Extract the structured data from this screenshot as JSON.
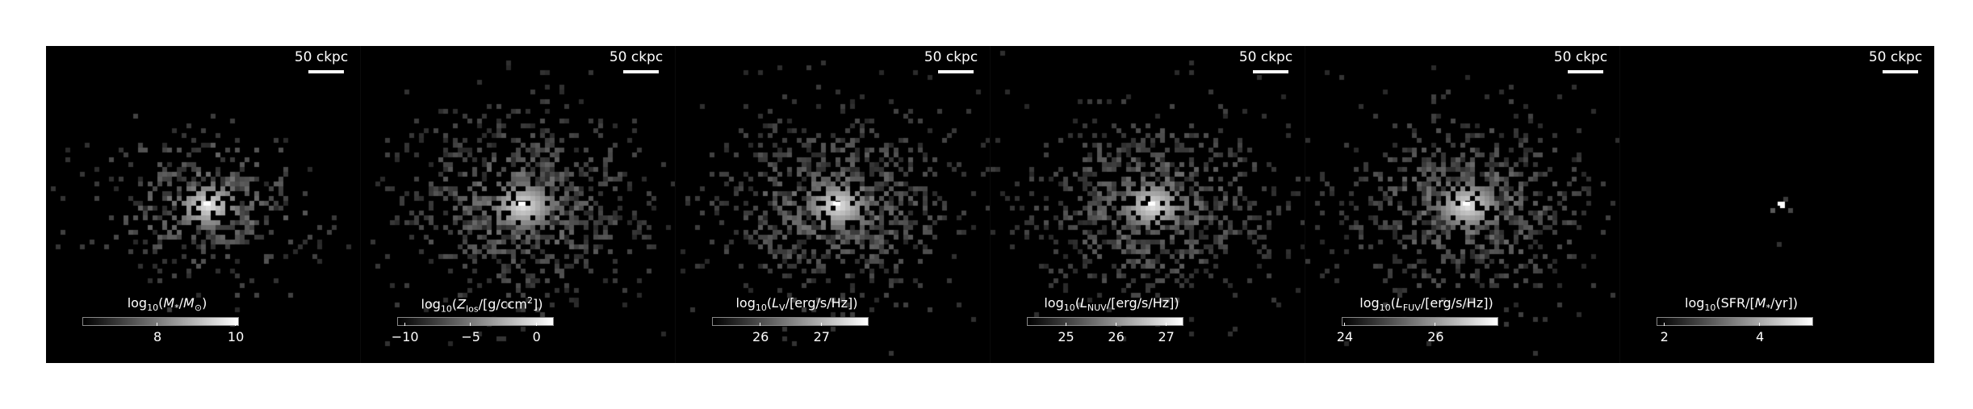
{
  "panels": [
    {
      "scale_label": "50 ckpc",
      "colorbar_title": "log10(M*/M⊙)",
      "ticks": [
        {
          "label": "8",
          "pos": 0.48
        },
        {
          "label": "10",
          "pos": 0.98
        }
      ],
      "spread": 0.55,
      "core": 1.0
    },
    {
      "scale_label": "50 ckpc",
      "colorbar_title": "log10(Zlos/[g/ccm2])",
      "ticks": [
        {
          "label": "−10",
          "pos": 0.05
        },
        {
          "label": "−5",
          "pos": 0.47
        },
        {
          "label": "0",
          "pos": 0.89
        }
      ],
      "spread": 1.0,
      "core": 0.9
    },
    {
      "scale_label": "50 ckpc",
      "colorbar_title": "log10(LV/[erg/s/Hz])",
      "ticks": [
        {
          "label": "26",
          "pos": 0.31
        },
        {
          "label": "27",
          "pos": 0.7
        }
      ],
      "spread": 1.0,
      "core": 0.9
    },
    {
      "scale_label": "50 ckpc",
      "colorbar_title": "log10(LNUV/[erg/s/Hz])",
      "ticks": [
        {
          "label": "25",
          "pos": 0.25
        },
        {
          "label": "26",
          "pos": 0.57
        },
        {
          "label": "27",
          "pos": 0.89
        }
      ],
      "spread": 1.0,
      "core": 0.9
    },
    {
      "scale_label": "50 ckpc",
      "colorbar_title": "log10(LFUV/[erg/s/Hz])",
      "ticks": [
        {
          "label": "24",
          "pos": 0.02
        },
        {
          "label": "26",
          "pos": 0.6
        }
      ],
      "spread": 1.0,
      "core": 0.9
    },
    {
      "scale_label": "50 ckpc",
      "colorbar_title": "log10(SFR/[M*/yr])",
      "ticks": [
        {
          "label": "2",
          "pos": 0.05
        },
        {
          "label": "4",
          "pos": 0.66
        }
      ],
      "spread": 0.05,
      "core": 1.0
    }
  ]
}
